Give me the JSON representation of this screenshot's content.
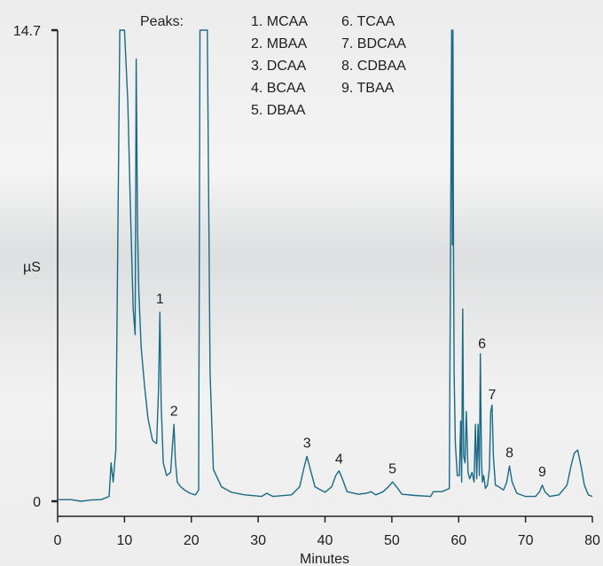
{
  "chart_data": {
    "type": "line",
    "xlabel": "Minutes",
    "ylabel": "µS",
    "xlim": [
      0,
      80
    ],
    "ylim": [
      0,
      14.7
    ],
    "y_tick_labels": [
      "0",
      "14.7"
    ],
    "x_ticks": [
      0,
      10,
      20,
      30,
      40,
      50,
      60,
      70,
      80
    ],
    "grid": false,
    "line_color": "#1a6a86",
    "legend": {
      "title": "Peaks:",
      "entries": [
        "1. MCAA",
        "2. MBAA",
        "3. DCAA",
        "4. BCAA",
        "5. DBAA",
        "6. TCAA",
        "7. BDCAA",
        "8. CDBAA",
        "9. TBAA"
      ]
    },
    "peak_labels": [
      {
        "label": "1",
        "x": 15.3,
        "y": 5.9
      },
      {
        "label": "2",
        "x": 17.4,
        "y": 2.4
      },
      {
        "label": "3",
        "x": 37.3,
        "y": 1.4
      },
      {
        "label": "4",
        "x": 42.1,
        "y": 0.9
      },
      {
        "label": "5",
        "x": 50.1,
        "y": 0.6
      },
      {
        "label": "6",
        "x": 63.5,
        "y": 4.5
      },
      {
        "label": "7",
        "x": 65.0,
        "y": 2.9
      },
      {
        "label": "8",
        "x": 67.6,
        "y": 1.1
      },
      {
        "label": "9",
        "x": 72.5,
        "y": 0.5
      }
    ],
    "series": [
      {
        "x": [
          0,
          2,
          3.5,
          5,
          6.5,
          7.7,
          8.0,
          8.3,
          8.7,
          9.3,
          9.7,
          10.0,
          10.5,
          10.9,
          11.3,
          11.6,
          11.75,
          11.95,
          12.15,
          12.5,
          13.0,
          13.5,
          14.2,
          14.8,
          15.1,
          15.3,
          15.5,
          15.8,
          16.3,
          16.9,
          17.2,
          17.4,
          17.6,
          17.9,
          18.4,
          19.0,
          19.8,
          20.6,
          21.1,
          21.3,
          21.6,
          22.4,
          22.8,
          23.3,
          24.5,
          26.0,
          28,
          30.5,
          31.3,
          32.2,
          35,
          36.2,
          36.8,
          37.3,
          37.8,
          38.5,
          40,
          41.0,
          41.6,
          42.1,
          42.6,
          43.3,
          45,
          46.2,
          46.9,
          47.6,
          48.7,
          49.5,
          50.1,
          50.7,
          51.5,
          53.5,
          55.8,
          56.2,
          57.5,
          58.6,
          58.95,
          59.05,
          59.15,
          59.22,
          59.32,
          59.5,
          59.8,
          60.1,
          60.3,
          60.45,
          60.6,
          60.75,
          60.95,
          61.15,
          61.4,
          61.65,
          62.0,
          62.3,
          62.5,
          62.7,
          62.9,
          63.1,
          63.25,
          63.4,
          63.55,
          63.75,
          64.0,
          64.3,
          64.6,
          64.8,
          65.0,
          65.2,
          65.5,
          66.0,
          66.7,
          67.2,
          67.6,
          68.0,
          68.7,
          70,
          71.5,
          72.1,
          72.5,
          72.9,
          73.6,
          75,
          76.2,
          76.8,
          77.3,
          77.8,
          78.3,
          78.8,
          79.4,
          80
        ],
        "y": [
          0.05,
          0.05,
          0.0,
          0.04,
          0.05,
          0.15,
          1.2,
          0.6,
          1.6,
          14.7,
          14.7,
          14.7,
          12.5,
          9.0,
          6.0,
          5.2,
          13.8,
          8.5,
          6.5,
          4.8,
          3.6,
          2.6,
          1.9,
          1.8,
          3.5,
          5.9,
          3.0,
          1.2,
          0.8,
          0.9,
          1.8,
          2.4,
          1.3,
          0.6,
          0.45,
          0.35,
          0.25,
          0.2,
          0.35,
          14.7,
          14.7,
          14.7,
          4.0,
          1.0,
          0.45,
          0.28,
          0.2,
          0.15,
          0.25,
          0.15,
          0.2,
          0.45,
          1.0,
          1.4,
          1.0,
          0.45,
          0.28,
          0.45,
          0.8,
          0.95,
          0.7,
          0.3,
          0.22,
          0.25,
          0.3,
          0.2,
          0.3,
          0.45,
          0.6,
          0.45,
          0.22,
          0.18,
          0.15,
          0.3,
          0.3,
          0.4,
          14.7,
          8.0,
          14.7,
          8.0,
          4.0,
          1.8,
          0.8,
          0.8,
          2.5,
          0.6,
          6.0,
          1.4,
          1.2,
          2.8,
          0.9,
          0.7,
          0.9,
          0.6,
          2.4,
          0.7,
          2.4,
          0.8,
          4.6,
          1.4,
          0.6,
          0.8,
          0.4,
          0.5,
          1.0,
          2.8,
          3.0,
          1.4,
          0.5,
          0.45,
          0.35,
          0.6,
          1.1,
          0.6,
          0.25,
          0.15,
          0.15,
          0.3,
          0.5,
          0.3,
          0.15,
          0.2,
          0.5,
          1.1,
          1.5,
          1.6,
          1.1,
          0.5,
          0.2,
          0.15
        ]
      }
    ]
  }
}
